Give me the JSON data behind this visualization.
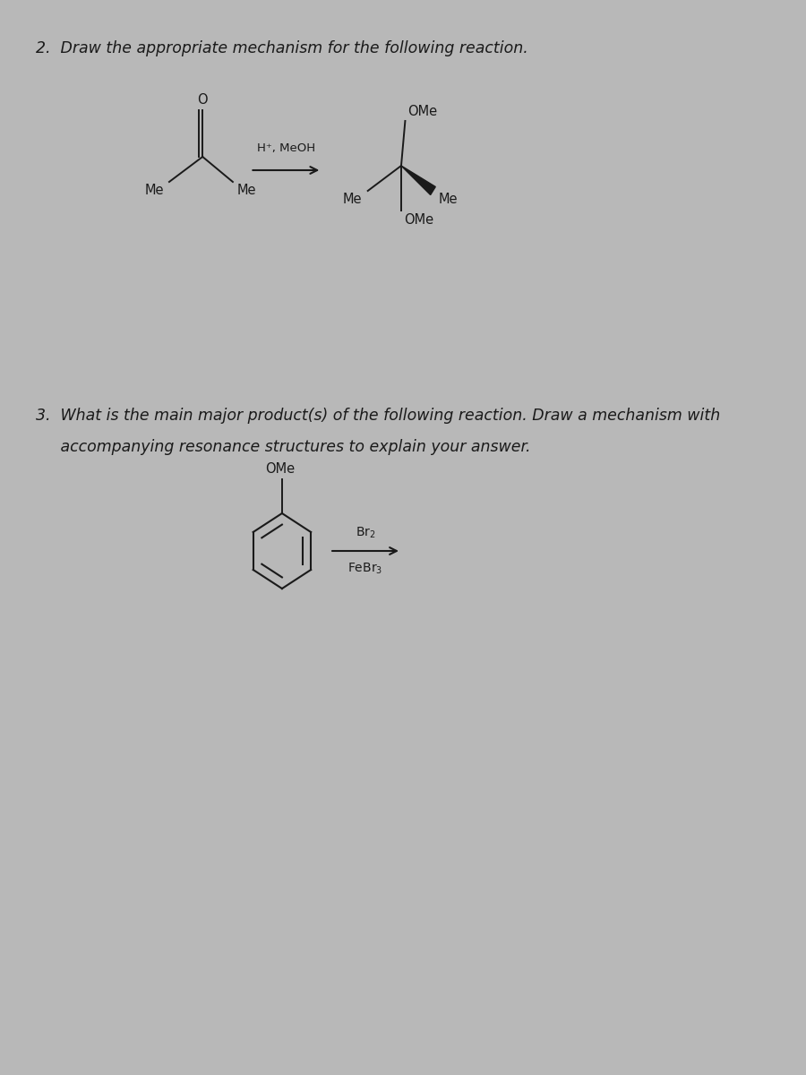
{
  "outer_bg": "#b8b8b8",
  "page_bg": "#dedede",
  "text_color": "#1a1a1a",
  "title2": "2.  Draw the appropriate mechanism for the following reaction.",
  "title3_line1": "3.  What is the main major product(s) of the following reaction. Draw a mechanism with",
  "title3_line2": "     accompanying resonance structures to explain your answer.",
  "reagent2": "H⁺, MeOH",
  "font_size_title": 12.5,
  "font_size_chem": 10.5,
  "font_size_reagent": 9.5
}
